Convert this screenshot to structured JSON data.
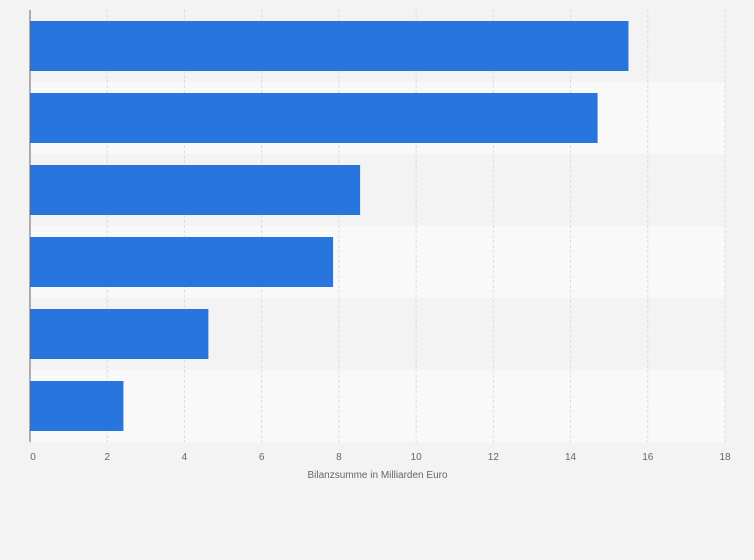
{
  "chart_data": {
    "type": "bar",
    "orientation": "horizontal",
    "categories": [
      "",
      "",
      "",
      "",
      "",
      ""
    ],
    "values": [
      15.5,
      14.7,
      8.55,
      7.85,
      4.62,
      2.42
    ],
    "title": "",
    "xlabel": "Bilanzsumme in Milliarden Euro",
    "ylabel": "",
    "xlim": [
      0,
      18
    ],
    "xticks": [
      0,
      2,
      4,
      6,
      8,
      10,
      12,
      14,
      16,
      18
    ],
    "xtick_labels": [
      "0",
      "2",
      "4",
      "6",
      "8",
      "10",
      "12",
      "14",
      "16",
      "18"
    ],
    "grid": true,
    "legend": "none",
    "colors": {
      "bar": "#2876dd",
      "band_dark": "#f3f3f3",
      "band_light": "#f9f9f9",
      "grid": "#dcdcdc",
      "axis": "#666666",
      "page": "#f3f3f3"
    }
  }
}
